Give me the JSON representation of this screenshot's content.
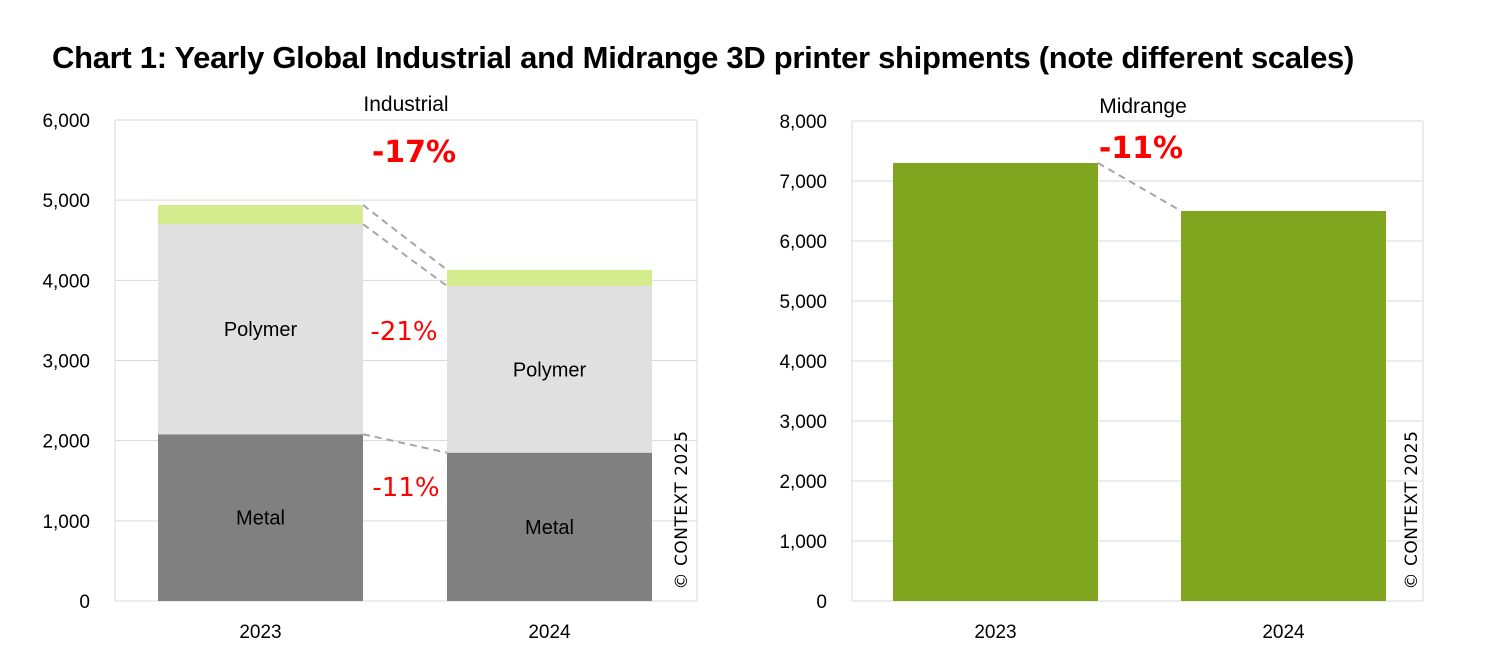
{
  "title": "Chart 1: Yearly Global Industrial and Midrange 3D printer shipments (note different scales)",
  "copyright": "© CONTEXT 2025",
  "colors": {
    "metal": "#808080",
    "polymer": "#e0e0e0",
    "other": "#d4ec8e",
    "midrange": "#80a51f",
    "change": "#ff0000",
    "grid": "#d9d9d9",
    "connector": "#a6a6a6"
  },
  "chart_data": [
    {
      "type": "bar",
      "stacked": true,
      "title": "Industrial",
      "categories": [
        "2023",
        "2024"
      ],
      "ylim": [
        0,
        6000
      ],
      "yticks": [
        "0",
        "1,000",
        "2,000",
        "3,000",
        "4,000",
        "5,000",
        "6,000"
      ],
      "grid": true,
      "series": [
        {
          "key": "metal",
          "name": "Metal",
          "values": [
            2080,
            1850
          ]
        },
        {
          "key": "polymer",
          "name": "Polymer",
          "values": [
            2620,
            2080
          ]
        },
        {
          "key": "other",
          "values": [
            240,
            200
          ]
        }
      ],
      "annotations": [
        {
          "text": "-17%",
          "bold": true
        },
        {
          "text": "-21%",
          "bold": false
        },
        {
          "text": "-11%",
          "bold": false
        }
      ]
    },
    {
      "type": "bar",
      "title": "Midrange",
      "categories": [
        "2023",
        "2024"
      ],
      "ylim": [
        0,
        8000
      ],
      "yticks": [
        "0",
        "1,000",
        "2,000",
        "3,000",
        "4,000",
        "5,000",
        "6,000",
        "7,000",
        "8,000"
      ],
      "grid": true,
      "series": [
        {
          "key": "midrange",
          "values": [
            7300,
            6500
          ]
        }
      ],
      "annotations": [
        {
          "text": "-11%",
          "bold": true
        }
      ]
    }
  ]
}
